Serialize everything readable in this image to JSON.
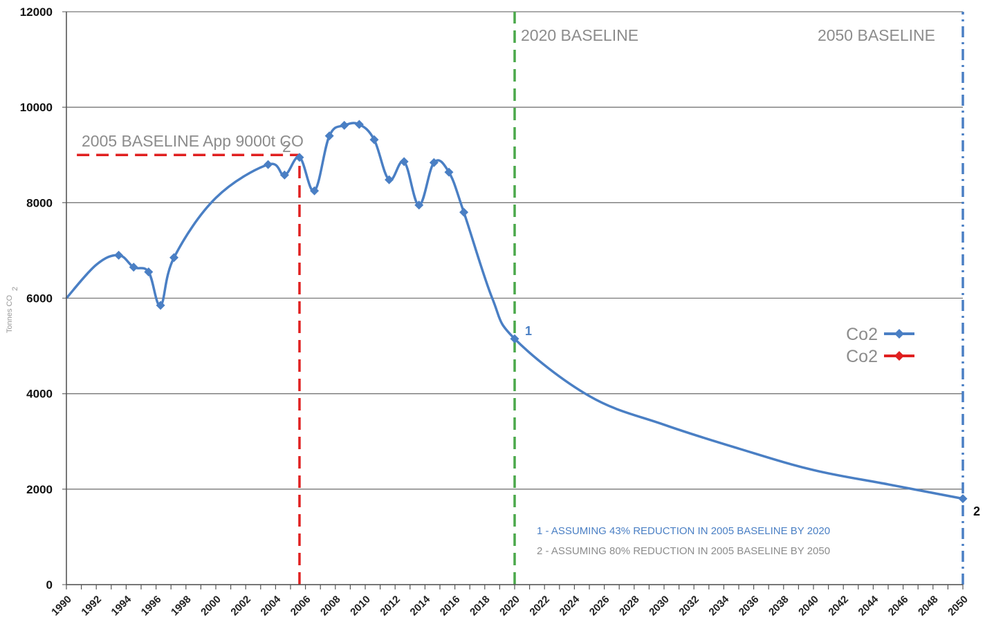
{
  "chart_data": {
    "type": "line",
    "ylabel": "Tonnes CO",
    "ylabel_sub": "2",
    "ylim": [
      0,
      12000
    ],
    "yticks": [
      0,
      2000,
      4000,
      6000,
      8000,
      10000,
      12000
    ],
    "xlim": [
      1990,
      2050
    ],
    "xticks": [
      "1990",
      "1992",
      "1994",
      "1996",
      "1998",
      "2000",
      "2002",
      "2004",
      "2006",
      "2008",
      "2010",
      "2012",
      "2014",
      "2016",
      "2018",
      "2020",
      "2022",
      "2024",
      "2026",
      "2028",
      "2030",
      "2032",
      "2034",
      "2036",
      "2038",
      "2040",
      "2042",
      "2044",
      "2046",
      "2048",
      "2050"
    ],
    "grid": "horizontal",
    "series": [
      {
        "name": "Co2",
        "color": "#4a7fc4",
        "points": [
          {
            "x": 1990.0,
            "y": 6000,
            "marker": false
          },
          {
            "x": 1992.0,
            "y": 6700,
            "marker": false
          },
          {
            "x": 1993.5,
            "y": 6900,
            "marker": true
          },
          {
            "x": 1994.5,
            "y": 6650,
            "marker": true
          },
          {
            "x": 1995.5,
            "y": 6550,
            "marker": true
          },
          {
            "x": 1996.3,
            "y": 5850,
            "marker": true
          },
          {
            "x": 1997.2,
            "y": 6850,
            "marker": true
          },
          {
            "x": 2000.0,
            "y": 8100,
            "marker": false
          },
          {
            "x": 2003.5,
            "y": 8800,
            "marker": true
          },
          {
            "x": 2004.6,
            "y": 8580,
            "marker": true
          },
          {
            "x": 2005.6,
            "y": 8950,
            "marker": true
          },
          {
            "x": 2006.6,
            "y": 8250,
            "marker": true
          },
          {
            "x": 2007.6,
            "y": 9400,
            "marker": true
          },
          {
            "x": 2008.6,
            "y": 9620,
            "marker": true
          },
          {
            "x": 2009.6,
            "y": 9640,
            "marker": true
          },
          {
            "x": 2010.6,
            "y": 9320,
            "marker": true
          },
          {
            "x": 2011.6,
            "y": 8480,
            "marker": true
          },
          {
            "x": 2012.6,
            "y": 8860,
            "marker": true
          },
          {
            "x": 2013.6,
            "y": 7950,
            "marker": true
          },
          {
            "x": 2014.6,
            "y": 8840,
            "marker": true
          },
          {
            "x": 2015.6,
            "y": 8640,
            "marker": true
          },
          {
            "x": 2016.6,
            "y": 7800,
            "marker": true
          },
          {
            "x": 2018.5,
            "y": 6000,
            "marker": false
          },
          {
            "x": 2020.0,
            "y": 5150,
            "marker": true
          },
          {
            "x": 2025.0,
            "y": 3950,
            "marker": false
          },
          {
            "x": 2030.0,
            "y": 3350,
            "marker": false
          },
          {
            "x": 2035.0,
            "y": 2850,
            "marker": false
          },
          {
            "x": 2040.0,
            "y": 2400,
            "marker": false
          },
          {
            "x": 2045.0,
            "y": 2100,
            "marker": false
          },
          {
            "x": 2050.0,
            "y": 1800,
            "marker": true
          }
        ]
      }
    ],
    "reference_lines": [
      {
        "orientation": "horizontal",
        "y": 9000,
        "x_from": 1990.7,
        "x_to": 2005.6,
        "color": "#e02020",
        "style": "dashed"
      },
      {
        "orientation": "vertical",
        "x": 2005.6,
        "y_from": 0,
        "y_to": 9000,
        "color": "#e02020",
        "style": "dashed"
      },
      {
        "orientation": "vertical",
        "x": 2020.0,
        "y_from": 0,
        "y_to": 12000,
        "color": "#4aa84a",
        "style": "dashed"
      },
      {
        "orientation": "vertical",
        "x": 2050.0,
        "y_from": 0,
        "y_to": 12000,
        "color": "#4a7fc4",
        "style": "dashdot"
      }
    ],
    "annotations": {
      "baseline_2005": {
        "text": "2005 BASELINE App 9000t CO",
        "sub": "2"
      },
      "baseline_2020": "2020 BASELINE",
      "baseline_2050": "2050 BASELINE",
      "point_1": {
        "text": "1",
        "color": "#4a7fc4"
      },
      "point_2": {
        "text": "2",
        "color": "#111111"
      },
      "note_1": "1 - ASSUMING 43% REDUCTION IN 2005 BASELINE BY 2020",
      "note_2": "2 - ASSUMING 80% REDUCTION IN 2005 BASELINE BY 2050"
    },
    "legend": {
      "placement": "right",
      "entries": [
        {
          "label": "Co2",
          "color": "#4a7fc4"
        },
        {
          "label": "Co2",
          "color": "#e02020"
        }
      ]
    }
  }
}
